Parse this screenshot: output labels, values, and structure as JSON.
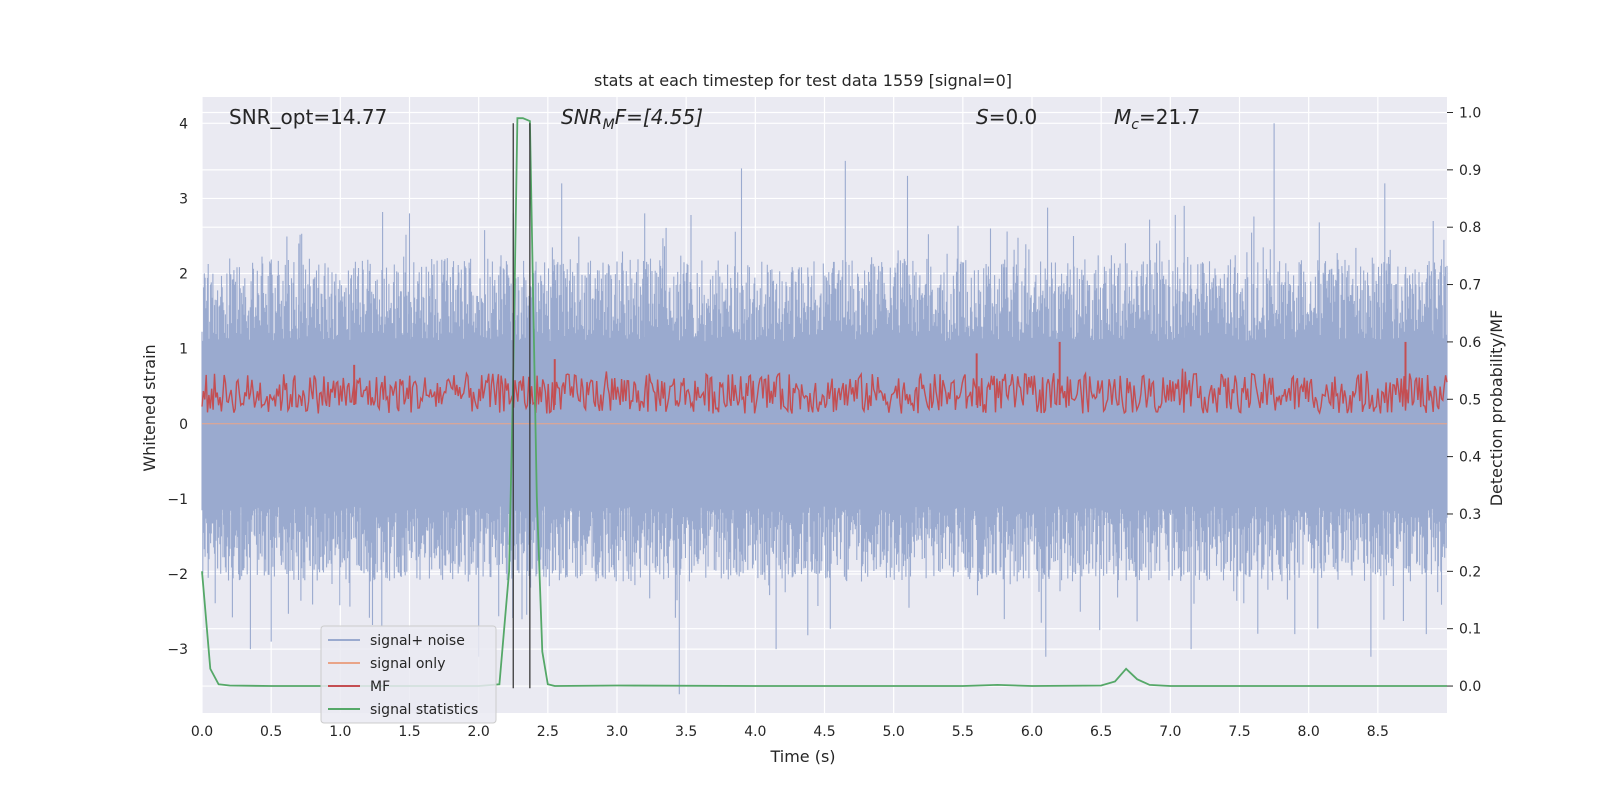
{
  "chart_data": {
    "type": "line",
    "title": "stats at each timestep for test data 1559 [signal=0]",
    "xlabel": "Time (s)",
    "ylabel_left": "Whitened strain",
    "ylabel_right": "Detection probability/MF",
    "xlim": [
      0,
      9.0
    ],
    "ylim_left": [
      -3.85,
      4.35
    ],
    "ylim_right": [
      -0.047,
      1.027
    ],
    "x_ticks": [
      0.0,
      0.5,
      1.0,
      1.5,
      2.0,
      2.5,
      3.0,
      3.5,
      4.0,
      4.5,
      5.0,
      5.5,
      6.0,
      6.5,
      7.0,
      7.5,
      8.0,
      8.5
    ],
    "x_tick_labels": [
      "0.0",
      "0.5",
      "1.0",
      "1.5",
      "2.0",
      "2.5",
      "3.0",
      "3.5",
      "4.0",
      "4.5",
      "5.0",
      "5.5",
      "6.0",
      "6.5",
      "7.0",
      "7.5",
      "8.0",
      "8.5"
    ],
    "y_ticks_left": [
      -3,
      -2,
      -1,
      0,
      1,
      2,
      3,
      4
    ],
    "y_tick_labels_left": [
      "−3",
      "−2",
      "−1",
      "0",
      "1",
      "2",
      "3",
      "4"
    ],
    "y_ticks_right": [
      0.0,
      0.1,
      0.2,
      0.3,
      0.4,
      0.5,
      0.6,
      0.7,
      0.8,
      0.9,
      1.0
    ],
    "y_tick_labels_right": [
      "0.0",
      "0.1",
      "0.2",
      "0.3",
      "0.4",
      "0.5",
      "0.6",
      "0.7",
      "0.8",
      "0.9",
      "1.0"
    ],
    "annotations": {
      "snr_opt": "SNR_opt=14.77",
      "snr_mf_base": "SNR",
      "snr_mf_sub": "M",
      "snr_mf_rest": "F=[4.55]",
      "s_label": "S",
      "s_value": "=0.0",
      "mc_base": "M",
      "mc_sub": "c",
      "mc_value": "=21.7"
    },
    "vertical_lines_x": [
      2.25,
      2.37
    ],
    "series": [
      {
        "name": "signal+ noise",
        "axis": "left",
        "color": "#9aaacf",
        "description": "whitened noise, amplitude roughly within -3.6..4.0",
        "spikes_up": [
          [
            0.2,
            2.2
          ],
          [
            0.7,
            2.4
          ],
          [
            1.5,
            2.8
          ],
          [
            2.25,
            2.8
          ],
          [
            2.6,
            3.2
          ],
          [
            3.2,
            2.8
          ],
          [
            3.9,
            3.4
          ],
          [
            4.65,
            3.5
          ],
          [
            5.1,
            3.3
          ],
          [
            5.7,
            2.6
          ],
          [
            6.3,
            2.5
          ],
          [
            7.1,
            2.9
          ],
          [
            7.75,
            4.0
          ],
          [
            8.55,
            3.2
          ],
          [
            8.9,
            2.7
          ]
        ],
        "spikes_down": [
          [
            0.35,
            -3.0
          ],
          [
            0.5,
            -2.9
          ],
          [
            1.3,
            -2.7
          ],
          [
            2.0,
            -3.1
          ],
          [
            3.45,
            -3.6
          ],
          [
            4.15,
            -3.0
          ],
          [
            5.8,
            -2.6
          ],
          [
            6.1,
            -3.1
          ],
          [
            7.15,
            -3.0
          ],
          [
            7.9,
            -2.8
          ],
          [
            8.45,
            -3.1
          ],
          [
            8.85,
            -2.8
          ]
        ]
      },
      {
        "name": "signal only",
        "axis": "left",
        "color": "#e9a488",
        "values_constant": 0
      },
      {
        "name": "MF",
        "axis": "right",
        "color": "#c44e52",
        "description": "matched-filter output oscillating around 0.5 (range ~0.47..0.58)",
        "spikes": [
          [
            1.1,
            0.56
          ],
          [
            2.55,
            0.57
          ],
          [
            5.6,
            0.58
          ],
          [
            6.2,
            0.6
          ],
          [
            8.7,
            0.6
          ]
        ]
      },
      {
        "name": "signal statistics",
        "axis": "right",
        "color": "#55a868",
        "x": [
          0.0,
          0.06,
          0.12,
          0.2,
          0.5,
          1.0,
          1.5,
          2.0,
          2.15,
          2.22,
          2.25,
          2.28,
          2.32,
          2.37,
          2.42,
          2.46,
          2.5,
          2.55,
          3.0,
          4.0,
          5.0,
          5.5,
          5.75,
          6.0,
          6.5,
          6.6,
          6.68,
          6.76,
          6.85,
          7.0,
          8.0,
          9.0
        ],
        "y": [
          0.2,
          0.03,
          0.003,
          0.001,
          0.0,
          0.0,
          0.0,
          0.0,
          0.003,
          0.2,
          0.55,
          0.99,
          0.99,
          0.985,
          0.33,
          0.06,
          0.003,
          0.0,
          0.001,
          0.0,
          0.0,
          0.0,
          0.002,
          0.0,
          0.001,
          0.008,
          0.03,
          0.012,
          0.002,
          0.0,
          0.0,
          0.0
        ]
      }
    ],
    "legend": {
      "placement": "lower-left",
      "entries": [
        "signal+ noise",
        "signal only",
        "MF",
        "signal statistics"
      ]
    }
  }
}
